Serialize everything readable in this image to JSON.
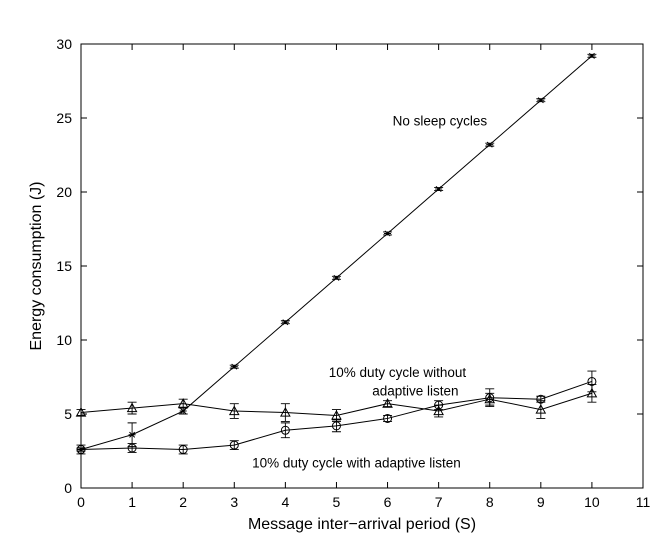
{
  "chart_data": {
    "type": "line",
    "title": "",
    "xlabel": "Message inter−arrival period (S)",
    "ylabel": "Energy consumption (J)",
    "xlim": [
      0,
      11
    ],
    "ylim": [
      0,
      30
    ],
    "x_ticks": [
      0,
      1,
      2,
      3,
      4,
      5,
      6,
      7,
      8,
      9,
      10,
      11
    ],
    "y_ticks": [
      0,
      5,
      10,
      15,
      20,
      25,
      30
    ],
    "grid": false,
    "legend": "none",
    "series": [
      {
        "marker": "star",
        "x": [
          0,
          1,
          2,
          3,
          4,
          5,
          6,
          7,
          8,
          9,
          10
        ],
        "y": [
          2.6,
          3.6,
          5.2,
          8.2,
          11.2,
          14.2,
          17.2,
          20.2,
          23.2,
          26.2,
          29.2
        ],
        "err": [
          0.1,
          0.8,
          0.2,
          0.1,
          0.1,
          0.1,
          0.1,
          0.1,
          0.1,
          0.1,
          0.1
        ]
      },
      {
        "marker": "triangle",
        "x": [
          0,
          1,
          2,
          3,
          4,
          5,
          6,
          7,
          8,
          9,
          10
        ],
        "y": [
          5.1,
          5.4,
          5.7,
          5.2,
          5.1,
          4.9,
          5.7,
          5.2,
          6.0,
          5.3,
          6.4
        ],
        "err": [
          0.2,
          0.4,
          0.3,
          0.5,
          0.6,
          0.4,
          0.2,
          0.4,
          0.4,
          0.6,
          0.6
        ]
      },
      {
        "marker": "circle",
        "x": [
          0,
          1,
          2,
          3,
          4,
          5,
          6,
          7,
          8,
          9,
          10
        ],
        "y": [
          2.6,
          2.7,
          2.6,
          2.9,
          3.9,
          4.2,
          4.7,
          5.6,
          6.1,
          6.0,
          7.2
        ],
        "err": [
          0.3,
          0.3,
          0.3,
          0.3,
          0.5,
          0.4,
          0.2,
          0.3,
          0.6,
          0.2,
          0.7
        ]
      }
    ],
    "annotations": [
      {
        "text": "No sleep cycles",
        "x": 6.1,
        "y": 24.5
      },
      {
        "text": "10% duty cycle without",
        "x": 4.85,
        "y": 7.5
      },
      {
        "text": "adaptive listen",
        "x": 5.7,
        "y": 6.25
      },
      {
        "text": "10% duty cycle with adaptive listen",
        "x": 3.35,
        "y": 1.4
      }
    ]
  }
}
